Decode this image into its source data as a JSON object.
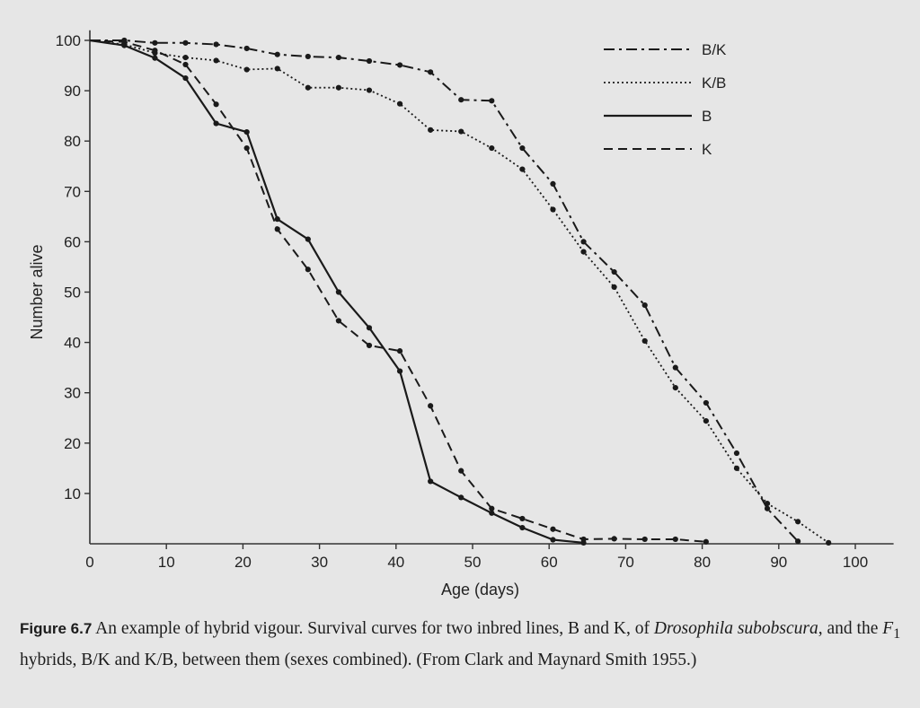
{
  "chart_data": {
    "type": "line",
    "title": "",
    "xlabel": "Age (days)",
    "ylabel": "Number alive",
    "xlim": [
      0,
      105
    ],
    "ylim": [
      0,
      102
    ],
    "xticks": [
      0,
      10,
      20,
      30,
      40,
      50,
      60,
      70,
      80,
      90,
      100
    ],
    "yticks": [
      10,
      20,
      30,
      40,
      50,
      60,
      70,
      80,
      90,
      100
    ],
    "legend_position": "top-right",
    "series": [
      {
        "name": "B/K",
        "style": "dashdot",
        "x": [
          0,
          4.5,
          8.5,
          12.5,
          16.5,
          20.5,
          24.5,
          28.5,
          32.5,
          36.5,
          40.5,
          44.5,
          48.5,
          52.5,
          56.5,
          60.5,
          64.5,
          68.5,
          72.5,
          76.5,
          80.5,
          84.5,
          88.5,
          92.5
        ],
        "y": [
          100,
          100,
          99.5,
          99.5,
          99.2,
          98.4,
          97.2,
          96.8,
          96.6,
          95.9,
          95.1,
          93.7,
          88.2,
          88,
          78.6,
          71.5,
          60,
          54,
          47.4,
          35,
          28,
          18,
          7,
          0.5
        ]
      },
      {
        "name": "K/B",
        "style": "dotted",
        "x": [
          0,
          4.5,
          8.5,
          12.5,
          16.5,
          20.5,
          24.5,
          28.5,
          32.5,
          36.5,
          40.5,
          44.5,
          48.5,
          52.5,
          56.5,
          60.5,
          64.5,
          68.5,
          72.5,
          76.5,
          80.5,
          84.5,
          88.5,
          92.5,
          96.5
        ],
        "y": [
          100,
          99.2,
          97.5,
          96.6,
          96,
          94.2,
          94.4,
          90.6,
          90.6,
          90.1,
          87.4,
          82.2,
          81.9,
          78.6,
          74.4,
          66.4,
          58,
          51,
          40.3,
          31,
          24.4,
          15,
          8,
          4.4,
          0.2
        ]
      },
      {
        "name": "B",
        "style": "solid",
        "x": [
          0,
          4.5,
          8.5,
          12.5,
          16.5,
          20.5,
          24.5,
          28.5,
          32.5,
          36.5,
          40.5,
          44.5,
          48.5,
          52.5,
          56.5,
          60.5,
          64.5
        ],
        "y": [
          100,
          99,
          96.5,
          92.5,
          83.5,
          81.8,
          64.5,
          60.5,
          50,
          42.9,
          34.3,
          12.4,
          9.2,
          6.1,
          3.2,
          0.8,
          0.2
        ]
      },
      {
        "name": "K",
        "style": "dashed",
        "x": [
          0,
          4.5,
          8.5,
          12.5,
          16.5,
          20.5,
          24.5,
          28.5,
          32.5,
          36.5,
          40.5,
          44.5,
          48.5,
          52.5,
          56.5,
          60.5,
          64.5,
          68.5,
          72.5,
          76.5,
          80.5
        ],
        "y": [
          100,
          99.7,
          98,
          95.2,
          87.3,
          78.6,
          62.5,
          54.5,
          44.3,
          39.4,
          38.3,
          27.4,
          14.5,
          7,
          5,
          2.9,
          0.9,
          1,
          0.9,
          0.9,
          0.4
        ]
      }
    ]
  },
  "caption": {
    "label": "Figure 6.7",
    "text_1": " An example of hybrid vigour. Survival curves for two inbred lines, B and K, of ",
    "species": "Drosophila subobscura",
    "text_2": ", and the ",
    "f1": "F",
    "f1_sub": "1",
    "text_3": " hybrids, B/K and K/B, between them (sexes combined). (From Clark and Maynard Smith 1955.)"
  }
}
